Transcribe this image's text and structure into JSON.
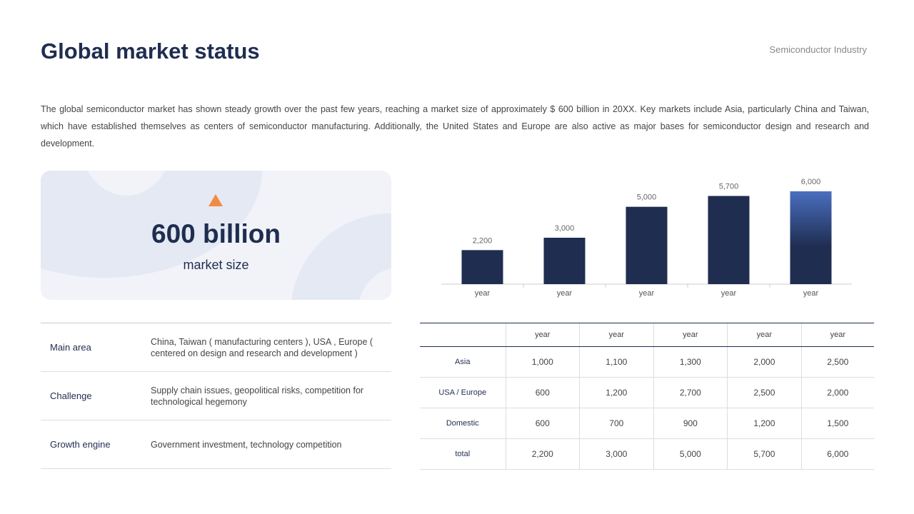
{
  "header": {
    "title": "Global market status",
    "subtitle": "Semiconductor Industry"
  },
  "description": "The global semiconductor market has shown steady growth over the past few years, reaching a market size of approximately $ 600 billion in 20XX. Key markets include Asia, particularly China and Taiwan, which have established themselves as centers of semiconductor manufacturing. Additionally, the United States and Europe are also active as major bases for semiconductor design and research and development.",
  "highlight": {
    "value": "600 billion",
    "label": "market size",
    "icon": "triangle-up-icon",
    "accent": "#f28a45"
  },
  "info": [
    {
      "key": "Main area",
      "value": "China, Taiwan ( manufacturing centers ), USA , Europe ( centered on design and research and development )"
    },
    {
      "key": "Challenge",
      "value": "Supply chain issues, geopolitical risks, competition for technological hegemony"
    },
    {
      "key": "Growth engine",
      "value": "Government investment, technology competition"
    }
  ],
  "chart_data": {
    "type": "bar",
    "categories": [
      "year",
      "year",
      "year",
      "year",
      "year"
    ],
    "values": [
      2200,
      3000,
      5000,
      5700,
      6000
    ],
    "labels": [
      "2,200",
      "3,000",
      "5,000",
      "5,700",
      "6,000"
    ],
    "ylim": [
      0,
      6000
    ],
    "grid": false,
    "color": "#1f2d50",
    "highlight_color": "#4a6fbf"
  },
  "table": {
    "headers": [
      "",
      "year",
      "year",
      "year",
      "year",
      "year"
    ],
    "rows": [
      [
        "Asia",
        "1,000",
        "1,100",
        "1,300",
        "2,000",
        "2,500"
      ],
      [
        "USA / Europe",
        "600",
        "1,200",
        "2,700",
        "2,500",
        "2,000"
      ],
      [
        "Domestic",
        "600",
        "700",
        "900",
        "1,200",
        "1,500"
      ],
      [
        "total",
        "2,200",
        "3,000",
        "5,000",
        "5,700",
        "6,000"
      ]
    ]
  }
}
